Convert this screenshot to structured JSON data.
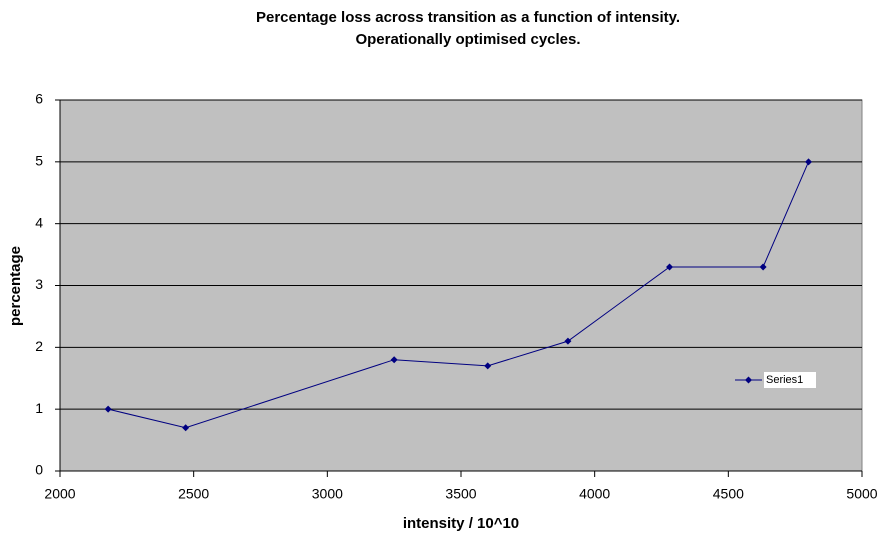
{
  "chart_data": {
    "type": "line",
    "title": [
      "Percentage loss across transition as a function of intensity.",
      "Operationally optimised cycles."
    ],
    "x_label": "intensity / 10^10",
    "y_label": "percentage",
    "series": [
      {
        "name": "Series1",
        "color": "#000080",
        "x": [
          2180,
          2470,
          3250,
          3600,
          3900,
          4280,
          4630,
          4800
        ],
        "values": [
          1,
          0.7,
          1.8,
          1.7,
          2.1,
          3.3,
          3.3,
          5
        ]
      }
    ],
    "xlim": [
      2000,
      5000
    ],
    "xticks": [
      2000,
      2500,
      3000,
      3500,
      4000,
      4500,
      5000
    ],
    "ylim": [
      0,
      6
    ],
    "yticks": [
      0,
      1,
      2,
      3,
      4,
      5,
      6
    ],
    "grid": true,
    "legend": "right"
  }
}
